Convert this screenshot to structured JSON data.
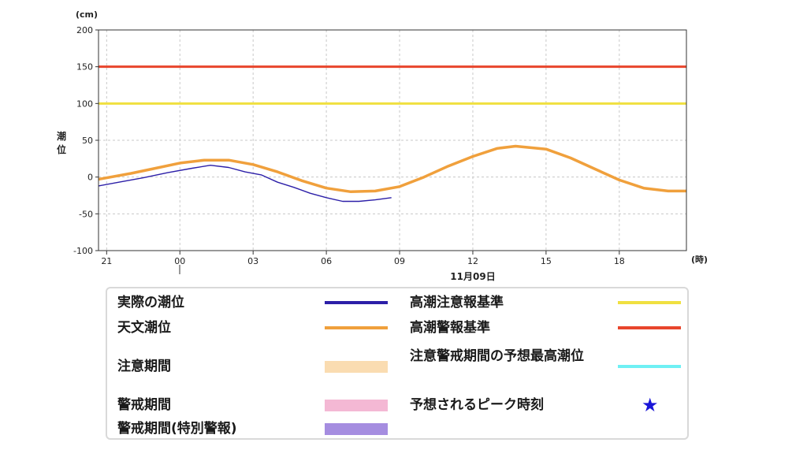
{
  "chart_data": {
    "type": "line",
    "y_unit": "(cm)",
    "ylabel": "潮位",
    "x_unit": "(時)",
    "date_label": "11月09日",
    "xlim": [
      "2024-11-08T20:40",
      "2024-11-09T20:45"
    ],
    "ylim": [
      -100,
      200
    ],
    "x_ticks": [
      {
        "t": "2024-11-08T21:00",
        "label": "21"
      },
      {
        "t": "2024-11-09T00:00",
        "label": "00"
      },
      {
        "t": "2024-11-09T03:00",
        "label": "03"
      },
      {
        "t": "2024-11-09T06:00",
        "label": "06"
      },
      {
        "t": "2024-11-09T09:00",
        "label": "09"
      },
      {
        "t": "2024-11-09T12:00",
        "label": "12"
      },
      {
        "t": "2024-11-09T15:00",
        "label": "15"
      },
      {
        "t": "2024-11-09T18:00",
        "label": "18"
      }
    ],
    "y_ticks": [
      200,
      150,
      100,
      50,
      0,
      -50,
      -100
    ],
    "grid": true,
    "thresholds": [
      {
        "name": "高潮警報基準",
        "value": 150,
        "color": "#e8452c"
      },
      {
        "name": "高潮注意報基準",
        "value": 100,
        "color": "#f0e040"
      }
    ],
    "series": [
      {
        "name": "天文潮位",
        "color": "#f0a03c",
        "x": [
          "2024-11-08T20:40",
          "2024-11-08T22:00",
          "2024-11-08T23:00",
          "2024-11-09T00:00",
          "2024-11-09T01:00",
          "2024-11-09T02:00",
          "2024-11-09T03:00",
          "2024-11-09T04:00",
          "2024-11-09T05:00",
          "2024-11-09T06:00",
          "2024-11-09T07:00",
          "2024-11-09T08:00",
          "2024-11-09T09:00",
          "2024-11-09T10:00",
          "2024-11-09T11:00",
          "2024-11-09T12:00",
          "2024-11-09T13:00",
          "2024-11-09T13:45",
          "2024-11-09T15:00",
          "2024-11-09T16:00",
          "2024-11-09T17:00",
          "2024-11-09T18:00",
          "2024-11-09T19:00",
          "2024-11-09T20:00",
          "2024-11-09T20:45"
        ],
        "values": [
          -3,
          5,
          12,
          19,
          23,
          23,
          17,
          7,
          -5,
          -15,
          -20,
          -19,
          -13,
          0,
          15,
          28,
          39,
          42,
          38,
          26,
          11,
          -4,
          -15,
          -19,
          -19
        ]
      },
      {
        "name": "実際の潮位",
        "color": "#2c1fa8",
        "x": [
          "2024-11-08T20:40",
          "2024-11-08T21:30",
          "2024-11-08T22:30",
          "2024-11-08T23:30",
          "2024-11-09T00:30",
          "2024-11-09T01:15",
          "2024-11-09T02:00",
          "2024-11-09T02:40",
          "2024-11-09T03:20",
          "2024-11-09T04:00",
          "2024-11-09T04:40",
          "2024-11-09T05:20",
          "2024-11-09T06:00",
          "2024-11-09T06:40",
          "2024-11-09T07:20",
          "2024-11-09T08:00",
          "2024-11-09T08:40"
        ],
        "values": [
          -12,
          -7,
          -1,
          6,
          12,
          16,
          13,
          7,
          3,
          -7,
          -14,
          -22,
          -28,
          -33,
          -33,
          -31,
          -28
        ]
      }
    ]
  },
  "legend": {
    "left": [
      {
        "label": "実際の潮位",
        "kind": "line",
        "color": "#2c1fa8"
      },
      {
        "label": "天文潮位",
        "kind": "line",
        "color": "#f0a03c"
      },
      {
        "label": "注意期間",
        "kind": "band",
        "color": "#fadcb1"
      },
      {
        "label": "警戒期間",
        "kind": "band",
        "color": "#f4b8d4"
      },
      {
        "label": "警戒期間(特別警報)",
        "kind": "band",
        "color": "#a58de0"
      }
    ],
    "right": [
      {
        "label": "高潮注意報基準",
        "kind": "line",
        "color": "#f0e040"
      },
      {
        "label": "高潮警報基準",
        "kind": "line",
        "color": "#e8452c"
      },
      {
        "label": "注意警戒期間の予想最高潮位",
        "kind": "line",
        "color": "#6ff0f4"
      },
      {
        "label": "予想されるピーク時刻",
        "kind": "star",
        "color": "#1a16d8",
        "glyph": "★"
      }
    ]
  }
}
